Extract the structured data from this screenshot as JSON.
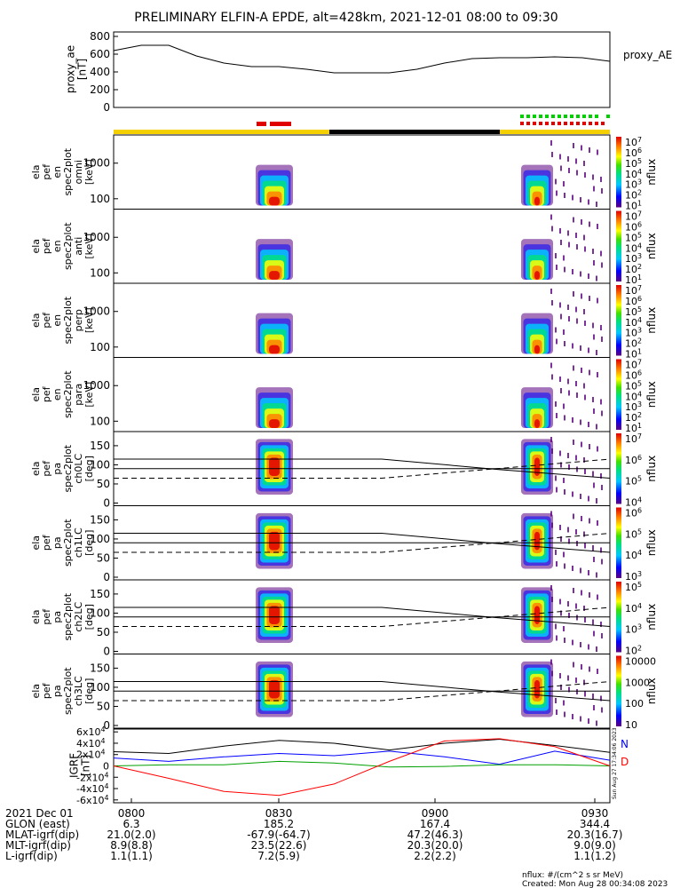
{
  "title": "PRELIMINARY ELFIN-A EPDE, alt=428km, 2021-12-01 08:00 to 09:30",
  "top_panel": {
    "ylabel": [
      "proxy_ae",
      "[nT]"
    ],
    "right_label": "proxy_AE",
    "yticks": [
      "800",
      "600",
      "400",
      "200",
      "0"
    ]
  },
  "spectrogram_panels": [
    {
      "ylabel": [
        "ela",
        "pef",
        "en",
        "spec2plot",
        "omni",
        "[keV]"
      ],
      "yticks": [
        "1000",
        "100"
      ],
      "zticks": [
        "10^7",
        "10^6",
        "10^5",
        "10^4",
        "10^3",
        "10^2",
        "10^1"
      ],
      "zlabel": "nflux"
    },
    {
      "ylabel": [
        "ela",
        "pef",
        "en",
        "spec2plot",
        "anti",
        "[keV]"
      ],
      "yticks": [
        "1000",
        "100"
      ],
      "zticks": [
        "10^7",
        "10^6",
        "10^5",
        "10^4",
        "10^3",
        "10^2",
        "10^1"
      ],
      "zlabel": "nflux"
    },
    {
      "ylabel": [
        "ela",
        "pef",
        "en",
        "spec2plot",
        "perp",
        "[keV]"
      ],
      "yticks": [
        "1000",
        "100"
      ],
      "zticks": [
        "10^7",
        "10^6",
        "10^5",
        "10^4",
        "10^3",
        "10^2",
        "10^1"
      ],
      "zlabel": "nflux"
    },
    {
      "ylabel": [
        "ela",
        "pef",
        "en",
        "spec2plot",
        "para",
        "[keV]"
      ],
      "yticks": [
        "1000",
        "100"
      ],
      "zticks": [
        "10^7",
        "10^6",
        "10^5",
        "10^4",
        "10^3",
        "10^2",
        "10^1"
      ],
      "zlabel": "nflux"
    },
    {
      "ylabel": [
        "ela",
        "pef",
        "pa",
        "spec2plot",
        "ch0LC",
        "[deg]"
      ],
      "yticks": [
        "150",
        "100",
        "50",
        "0"
      ],
      "zticks": [
        "10^7",
        "10^6",
        "10^5",
        "10^4"
      ],
      "zlabel": "nflux"
    },
    {
      "ylabel": [
        "ela",
        "pef",
        "pa",
        "spec2plot",
        "ch1LC",
        "[deg]"
      ],
      "yticks": [
        "150",
        "100",
        "50",
        "0"
      ],
      "zticks": [
        "10^6",
        "10^5",
        "10^4",
        "10^3"
      ],
      "zlabel": "nflux"
    },
    {
      "ylabel": [
        "ela",
        "pef",
        "pa",
        "spec2plot",
        "ch2LC",
        "[deg]"
      ],
      "yticks": [
        "150",
        "100",
        "50",
        "0"
      ],
      "zticks": [
        "10^5",
        "10^4",
        "10^3",
        "10^2"
      ],
      "zlabel": "nflux"
    },
    {
      "ylabel": [
        "ela",
        "pef",
        "pa",
        "spec2plot",
        "ch3LC",
        "[deg]"
      ],
      "yticks": [
        "150",
        "100",
        "50",
        "0"
      ],
      "zticks": [
        "10000",
        "1000",
        "100",
        "10"
      ],
      "zlabel": "nflux"
    }
  ],
  "igrf_panel": {
    "ylabel": [
      "IGRF",
      "[nT]"
    ],
    "yticks": [
      "6x10^4",
      "4x10^4",
      "2x10^4",
      "0",
      "-2x10^4",
      "-4x10^4",
      "-6x10^4"
    ],
    "legend": [
      {
        "label": "N",
        "color": "#0000ff"
      },
      {
        "label": "D",
        "color": "#ff0000"
      }
    ],
    "side_note": "Sun Aug 27 17:34:06 2023"
  },
  "bottom_table": {
    "rows": [
      {
        "label": "2021 Dec 01",
        "values": [
          "0800",
          "0830",
          "0900",
          "0930"
        ]
      },
      {
        "label": "GLON (east)",
        "values": [
          "6.3",
          "185.2",
          "167.4",
          "344.4"
        ]
      },
      {
        "label": "MLAT-igrf(dip)",
        "values": [
          "21.0(2.0)",
          "-67.9(-64.7)",
          "47.2(46.3)",
          "20.3(16.7)"
        ]
      },
      {
        "label": "MLT-igrf(dip)",
        "values": [
          "8.9(8.8)",
          "23.5(22.6)",
          "20.3(20.0)",
          "9.0(9.0)"
        ]
      },
      {
        "label": "L-igrf(dip)",
        "values": [
          "1.1(1.1)",
          "7.2(5.9)",
          "2.2(2.2)",
          "1.1(1.2)"
        ]
      }
    ]
  },
  "footer": {
    "units": "nflux: #/(cm^2 s sr MeV)",
    "created": "Created: Mon Aug 28 00:34:08 2023"
  },
  "colors": {
    "sunlit": "#f5d000",
    "shadow": "#000000",
    "science_red": "#e00000",
    "science_green": "#00d000",
    "igrf_black": "#000000",
    "igrf_blue": "#0000ff",
    "igrf_green": "#00a000",
    "igrf_red": "#ff0000"
  },
  "chart_data": [
    {
      "type": "line",
      "name": "proxy_AE",
      "x_time": [
        "08:00",
        "08:05",
        "08:10",
        "08:15",
        "08:20",
        "08:25",
        "08:30",
        "08:35",
        "08:40",
        "08:45",
        "08:50",
        "08:55",
        "09:00",
        "09:05",
        "09:10",
        "09:15",
        "09:20",
        "09:25",
        "09:30"
      ],
      "values": [
        640,
        700,
        700,
        580,
        500,
        460,
        460,
        430,
        390,
        390,
        390,
        430,
        500,
        550,
        560,
        560,
        570,
        560,
        520
      ],
      "ylim": [
        0,
        850
      ]
    },
    {
      "type": "line",
      "title": "IGRF",
      "x_time": [
        "08:00",
        "08:10",
        "08:20",
        "08:30",
        "08:40",
        "08:50",
        "09:00",
        "09:10",
        "09:20",
        "09:30"
      ],
      "series": [
        {
          "values": [
            25000,
            22000,
            35000,
            45000,
            40000,
            28000,
            40000,
            47000,
            36000,
            24000
          ]
        },
        {
          "values": [
            14000,
            8000,
            16000,
            22000,
            18000,
            26000,
            16000,
            3000,
            26000,
            10000
          ]
        },
        {
          "values": [
            0,
            2000,
            2000,
            8000,
            5000,
            -2000,
            -1000,
            2000,
            2000,
            0
          ]
        },
        {
          "values": [
            0,
            -22000,
            -45000,
            -52000,
            -32000,
            8000,
            44000,
            48000,
            34000,
            0
          ]
        }
      ],
      "ylim": [
        -65000,
        65000
      ]
    }
  ]
}
